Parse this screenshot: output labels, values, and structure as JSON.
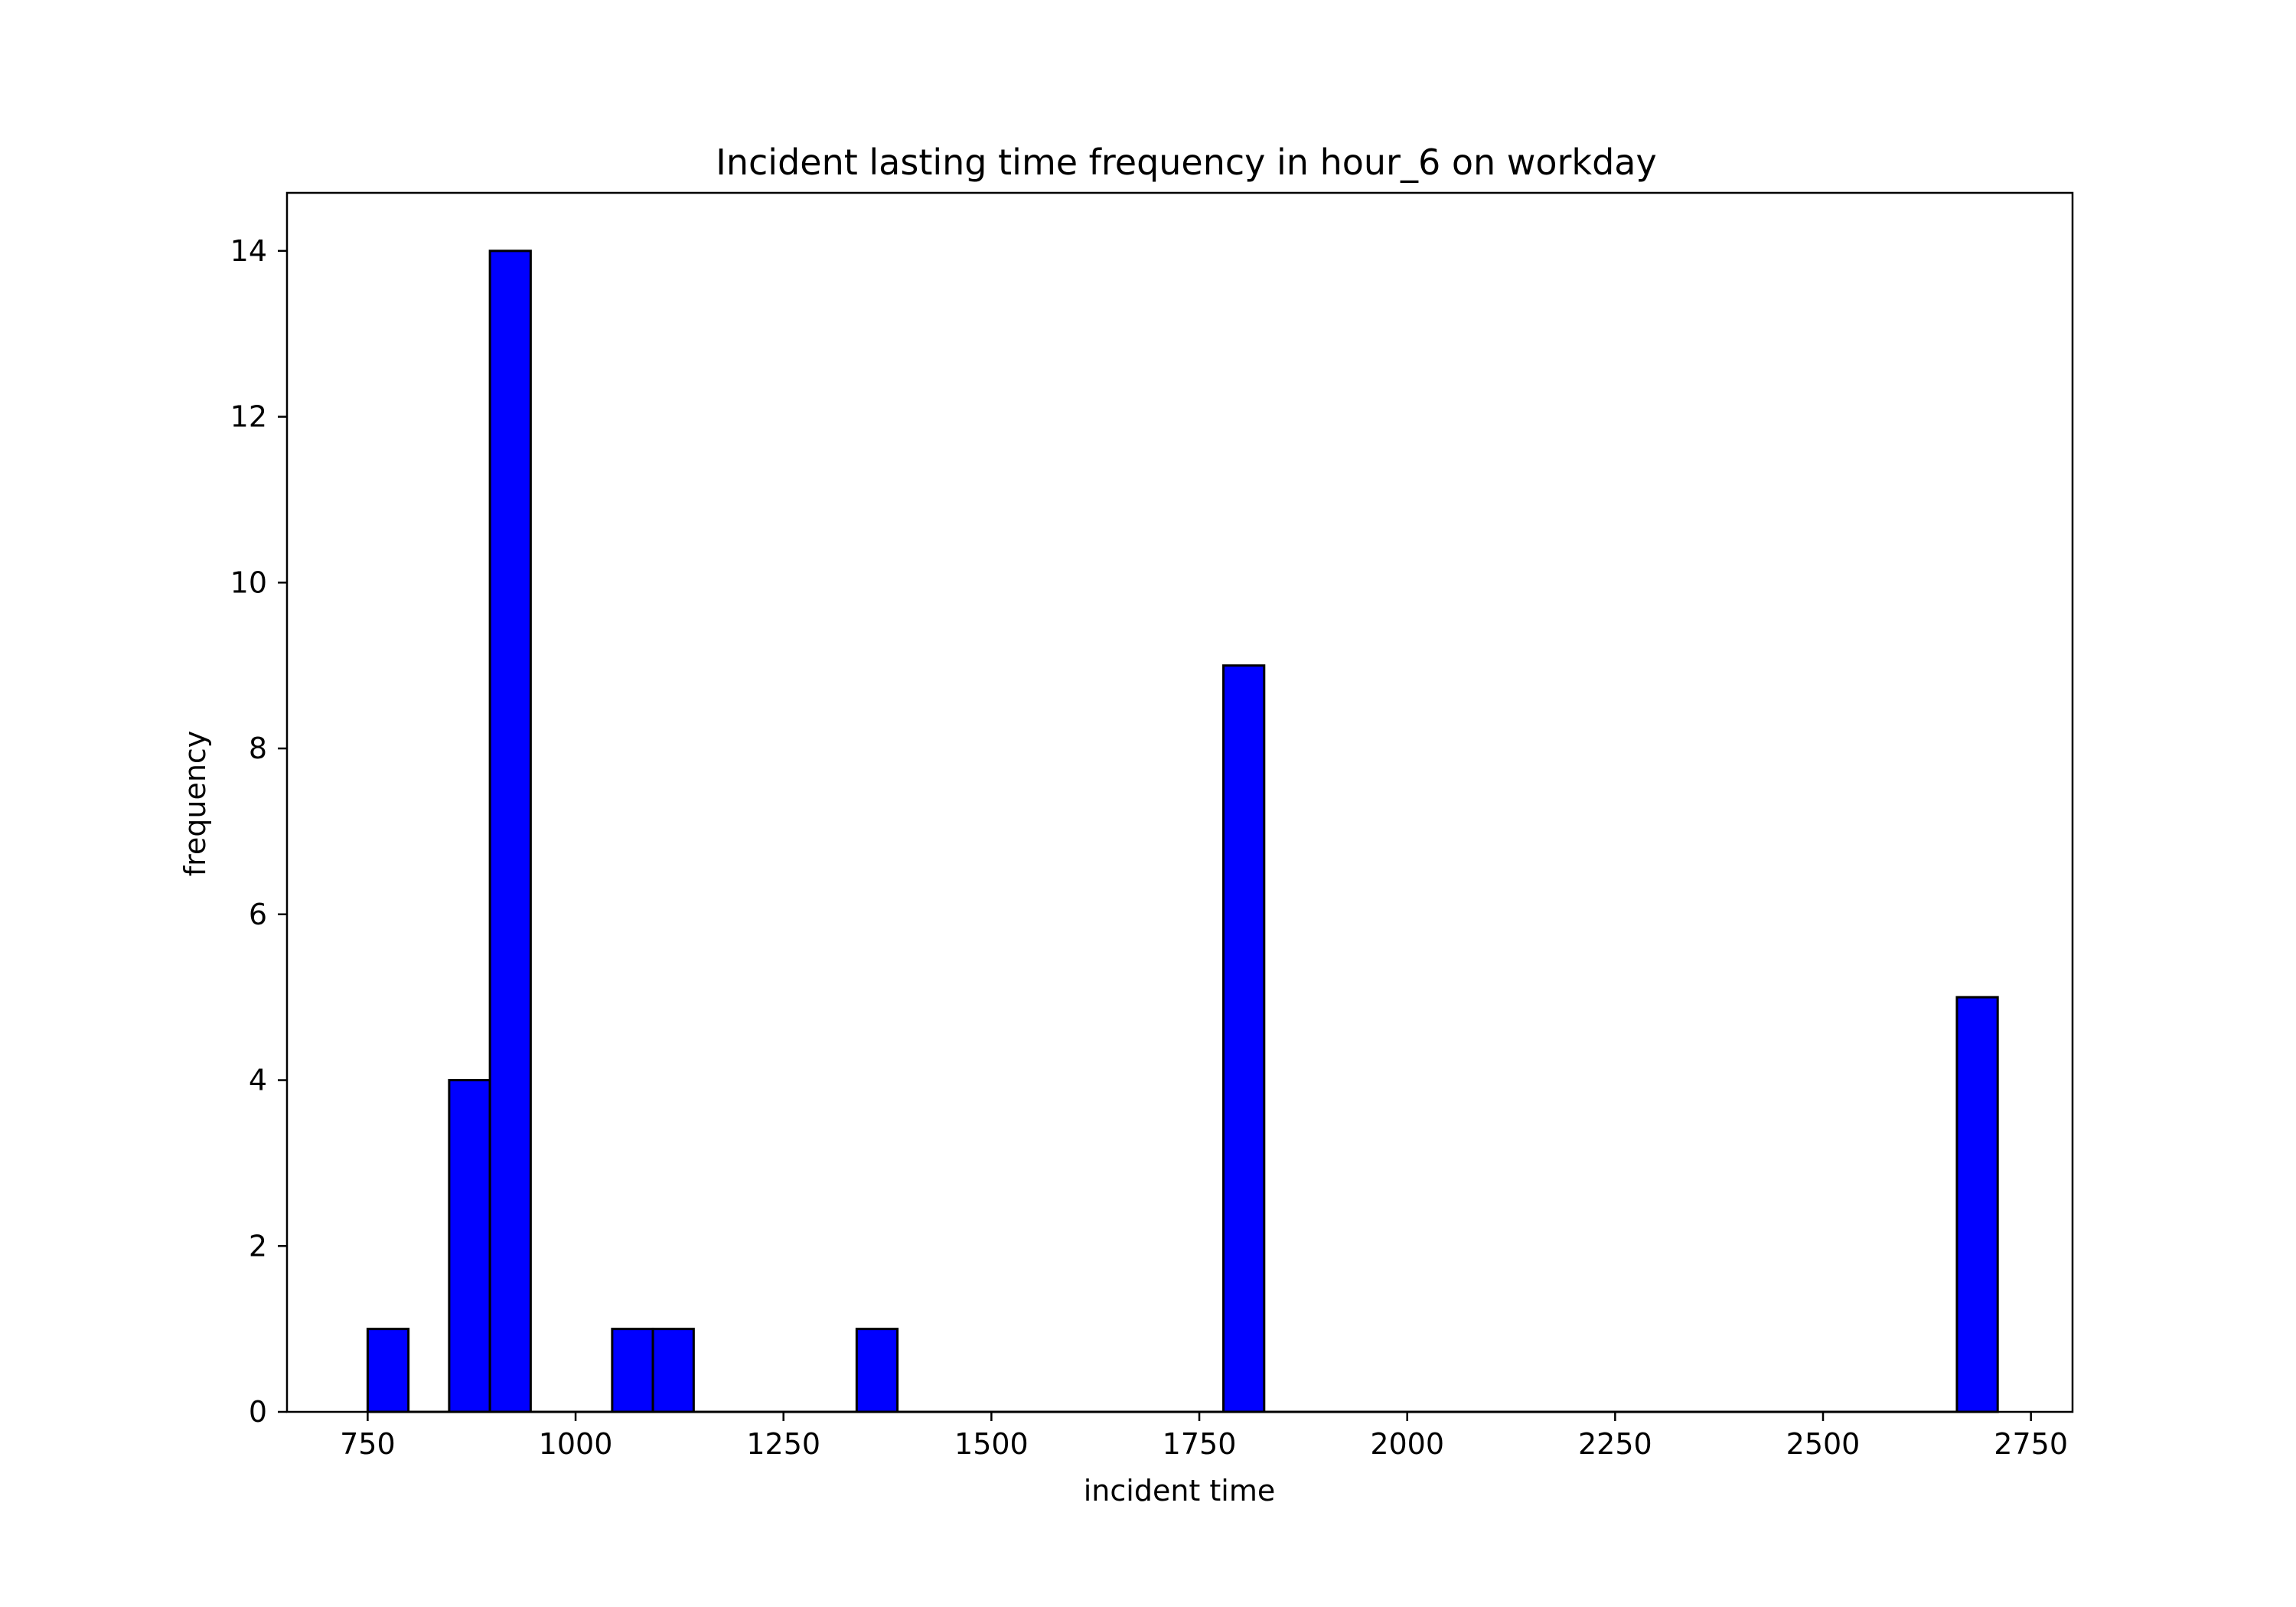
{
  "chart_data": {
    "type": "bar",
    "title": "Incident lasting time frequency in hour_6 on workday",
    "xlabel": "incident time",
    "ylabel": "frequency",
    "xlim": [
      653,
      2800
    ],
    "ylim": [
      0,
      14.7
    ],
    "xticks": [
      750,
      1000,
      1250,
      1500,
      1750,
      2000,
      2250,
      2500,
      2750
    ],
    "yticks": [
      0,
      2,
      4,
      6,
      8,
      10,
      12,
      14
    ],
    "bin_start": 750,
    "bin_width": 49,
    "bin_count": 40,
    "counts": [
      1,
      0,
      4,
      14,
      0,
      0,
      1,
      1,
      0,
      0,
      0,
      0,
      1,
      0,
      0,
      0,
      0,
      0,
      0,
      0,
      0,
      9,
      0,
      0,
      0,
      0,
      0,
      0,
      0,
      0,
      0,
      0,
      0,
      0,
      0,
      0,
      0,
      0,
      0,
      5
    ],
    "bar_color": "#0000ff",
    "edge_color": "#000000",
    "grid": false,
    "legend": "none"
  }
}
